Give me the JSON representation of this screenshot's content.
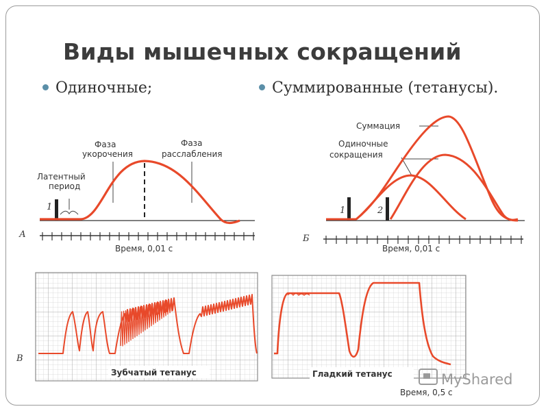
{
  "title": "Виды мышечных сокращений",
  "bullets": {
    "left": "Одиночные;",
    "right": "Суммированные (тетанусы)."
  },
  "panel_a": {
    "letter": "А",
    "stimulus_mark": "1",
    "latent_label_line1": "Латентный",
    "latent_label_line2": "период",
    "shortening_line1": "Фаза",
    "shortening_line2": "укорочения",
    "relax_line1": "Фаза",
    "relax_line2": "расслабления",
    "time_label": "Время, 0,01 с"
  },
  "panel_b": {
    "letter": "Б",
    "stimulus_mark_1": "1",
    "stimulus_mark_2": "2",
    "summation_label": "Суммация",
    "single_line1": "Одиночные",
    "single_line2": "сокращения",
    "time_label": "Время, 0,01 с"
  },
  "panel_c": {
    "letter": "В",
    "toothed_label": "Зубчатый тетанус",
    "smooth_label": "Гладкий тетанус",
    "time_label": "Время, 0,5 с"
  },
  "watermark": "MyShared",
  "colors": {
    "curve": "#e8492a",
    "grid": "#c9c9c9",
    "ink": "#333333",
    "bullet": "#5b8fa8"
  }
}
